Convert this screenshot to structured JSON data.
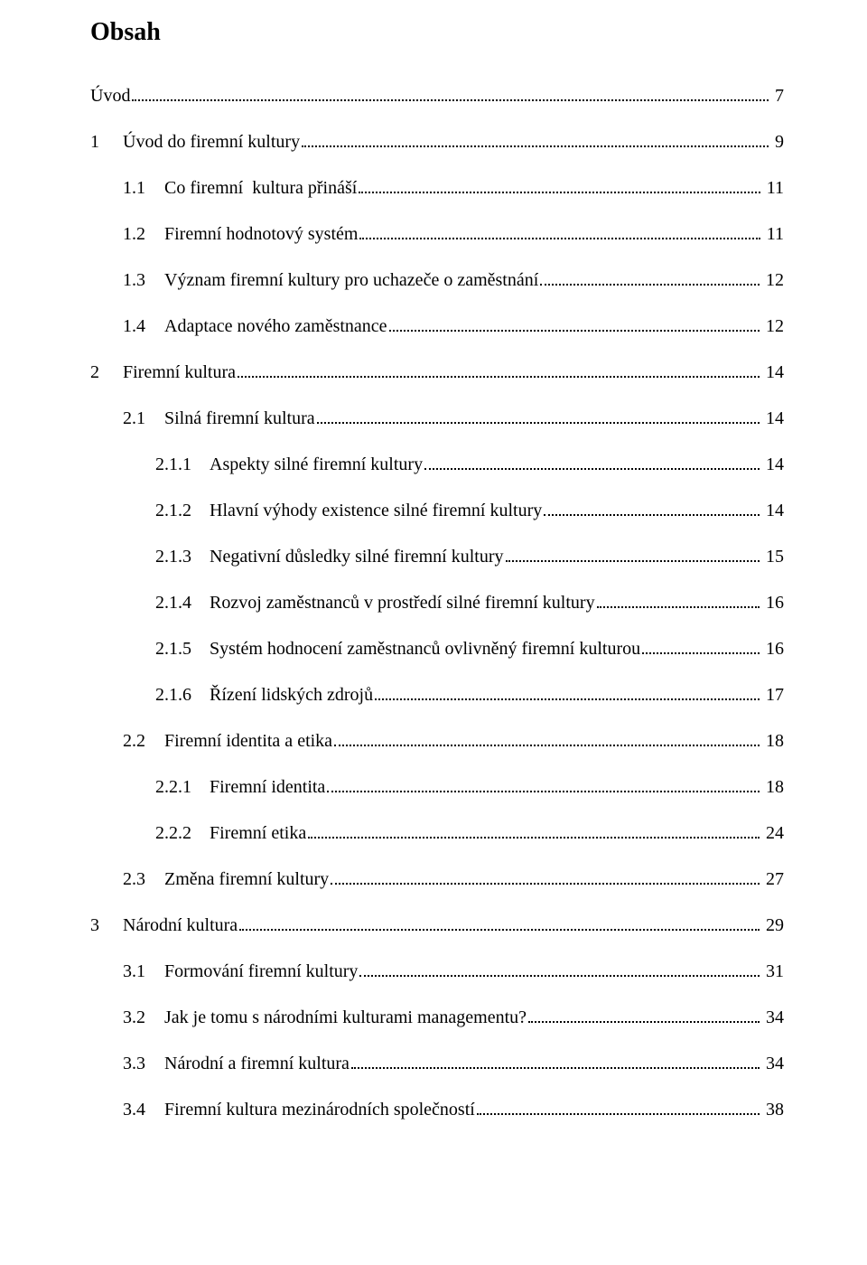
{
  "title": "Obsah",
  "entries": [
    {
      "lvl": 0,
      "num": "",
      "label": "Úvod",
      "page": "7"
    },
    {
      "lvl": 1,
      "num": "1",
      "label": "Úvod do firemní kultury",
      "page": "9"
    },
    {
      "lvl": 2,
      "num": "1.1",
      "label": "Co firemní  kultura přináší",
      "page": "11"
    },
    {
      "lvl": 2,
      "num": "1.2",
      "label": "Firemní hodnotový systém",
      "page": "11"
    },
    {
      "lvl": 2,
      "num": "1.3",
      "label": "Význam firemní kultury pro uchazeče o zaměstnání",
      "page": "12"
    },
    {
      "lvl": 2,
      "num": "1.4",
      "label": "Adaptace nového zaměstnance",
      "page": "12"
    },
    {
      "lvl": 1,
      "num": "2",
      "label": "Firemní kultura",
      "page": "14"
    },
    {
      "lvl": 2,
      "num": "2.1",
      "label": "Silná firemní kultura",
      "page": "14"
    },
    {
      "lvl": 3,
      "num": "2.1.1",
      "label": "Aspekty silné firemní kultury",
      "page": "14"
    },
    {
      "lvl": 3,
      "num": "2.1.2",
      "label": "Hlavní výhody existence silné firemní kultury",
      "page": "14"
    },
    {
      "lvl": 3,
      "num": "2.1.3",
      "label": "Negativní důsledky silné firemní kultury",
      "page": "15"
    },
    {
      "lvl": 3,
      "num": "2.1.4",
      "label": "Rozvoj zaměstnanců v prostředí silné firemní kultury",
      "page": "16"
    },
    {
      "lvl": 3,
      "num": "2.1.5",
      "label": "Systém hodnocení zaměstnanců ovlivněný firemní kulturou",
      "page": "16"
    },
    {
      "lvl": 3,
      "num": "2.1.6",
      "label": "Řízení lidských zdrojů",
      "page": "17"
    },
    {
      "lvl": 2,
      "num": "2.2",
      "label": "Firemní identita a etika",
      "page": "18"
    },
    {
      "lvl": 3,
      "num": "2.2.1",
      "label": "Firemní identita",
      "page": "18"
    },
    {
      "lvl": 3,
      "num": "2.2.2",
      "label": "Firemní etika",
      "page": "24"
    },
    {
      "lvl": 2,
      "num": "2.3",
      "label": "Změna firemní kultury",
      "page": "27"
    },
    {
      "lvl": 1,
      "num": "3",
      "label": "Národní kultura",
      "page": "29"
    },
    {
      "lvl": 2,
      "num": "3.1",
      "label": "Formování firemní kultury",
      "page": "31"
    },
    {
      "lvl": 2,
      "num": "3.2",
      "label": "Jak je tomu s národními kulturami managementu?",
      "page": "34"
    },
    {
      "lvl": 2,
      "num": "3.3",
      "label": "Národní a firemní kultura",
      "page": "34"
    },
    {
      "lvl": 2,
      "num": "3.4",
      "label": "Firemní kultura mezinárodních společností",
      "page": "38"
    }
  ],
  "numColWidth": {
    "0": 0,
    "1": 36,
    "2": 46,
    "3": 60
  },
  "textColor": "#000000",
  "bgColor": "#ffffff",
  "fontSize": 20,
  "titleFontSize": 28
}
